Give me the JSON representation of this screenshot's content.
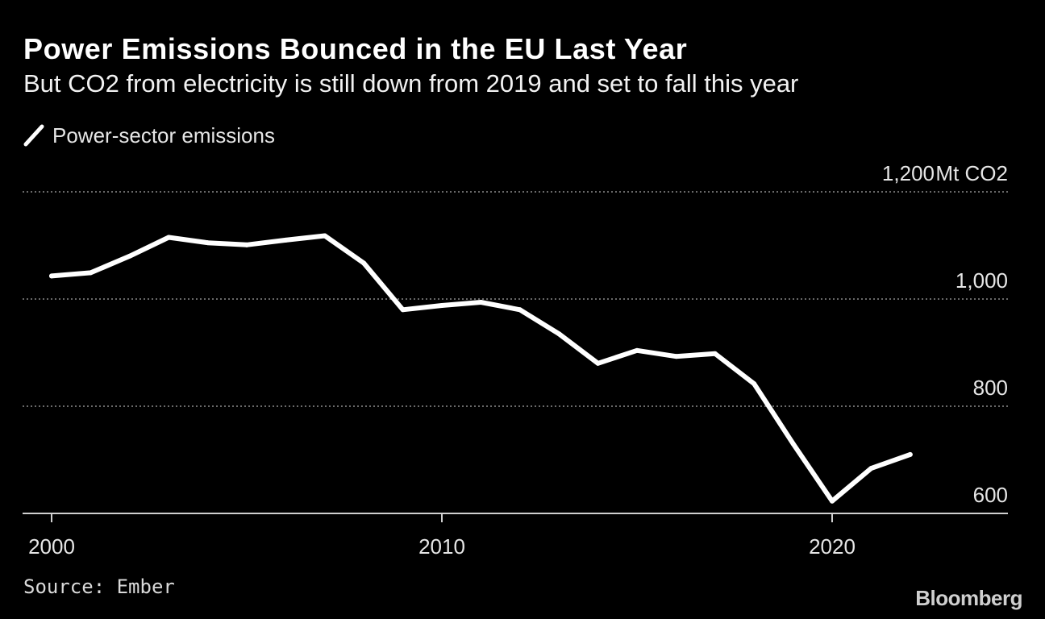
{
  "header": {
    "title": "Power Emissions Bounced in the EU Last Year",
    "subtitle": "But CO2 from electricity is still down from 2019 and set to fall this year"
  },
  "legend": {
    "label": "Power-sector emissions"
  },
  "footer": {
    "source": "Source: Ember",
    "brand": "Bloomberg"
  },
  "colors": {
    "background": "#000000",
    "line": "#ffffff",
    "grid": "#8c8c8c",
    "text": "#e6e6e6"
  },
  "chart_data": {
    "type": "line",
    "title": "Power Emissions Bounced in the EU Last Year",
    "subtitle": "But CO2 from electricity is still down from 2019 and set to fall this year",
    "xlabel": "",
    "ylabel": "Mt CO2",
    "unit_label": "Mt CO2",
    "xlim": [
      1999.4,
      2023.8
    ],
    "ylim": [
      600,
      1200
    ],
    "x_ticks": [
      2000,
      2010,
      2020
    ],
    "x_tick_labels": [
      "2000",
      "2010",
      "2020"
    ],
    "y_ticks": [
      600,
      800,
      1000,
      1200
    ],
    "y_tick_labels": [
      "600",
      "800",
      "1,000",
      "1,200"
    ],
    "grid": true,
    "legend_position": "top-left",
    "series": [
      {
        "name": "Power-sector emissions",
        "x": [
          2000,
          2001,
          2002,
          2003,
          2004,
          2005,
          2006,
          2007,
          2008,
          2009,
          2010,
          2011,
          2012,
          2013,
          2014,
          2015,
          2016,
          2017,
          2018,
          2019,
          2020,
          2021,
          2022
        ],
        "values": [
          1043,
          1049,
          1080,
          1115,
          1105,
          1101,
          1110,
          1118,
          1067,
          980,
          988,
          994,
          980,
          935,
          880,
          904,
          893,
          898,
          842,
          730,
          623,
          684,
          710
        ]
      }
    ]
  }
}
